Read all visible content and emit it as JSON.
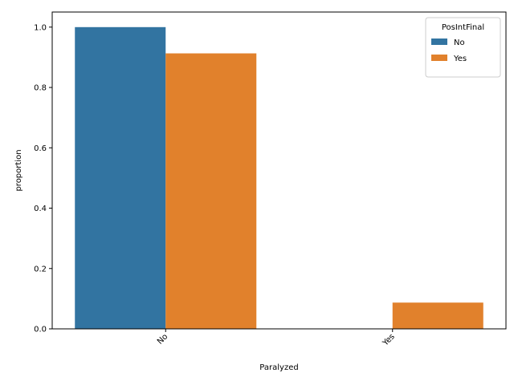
{
  "chart_data": {
    "type": "bar",
    "title": "",
    "xlabel": "Paralyzed",
    "ylabel": "proportion",
    "categories": [
      "No",
      "Yes"
    ],
    "ylim": [
      0,
      1.05
    ],
    "yticks": [
      0.0,
      0.2,
      0.4,
      0.6,
      0.8,
      1.0
    ],
    "ytick_labels": [
      "0.0",
      "0.2",
      "0.4",
      "0.6",
      "0.8",
      "1.0"
    ],
    "xtick_rotation_deg": 45,
    "grid": false,
    "legend": {
      "title": "PosIntFinal",
      "position": "top-right"
    },
    "series": [
      {
        "name": "No",
        "color": "#3274a1",
        "values": [
          1.0,
          0.0
        ]
      },
      {
        "name": "Yes",
        "color": "#e1812c",
        "values": [
          0.913,
          0.087
        ]
      }
    ]
  }
}
